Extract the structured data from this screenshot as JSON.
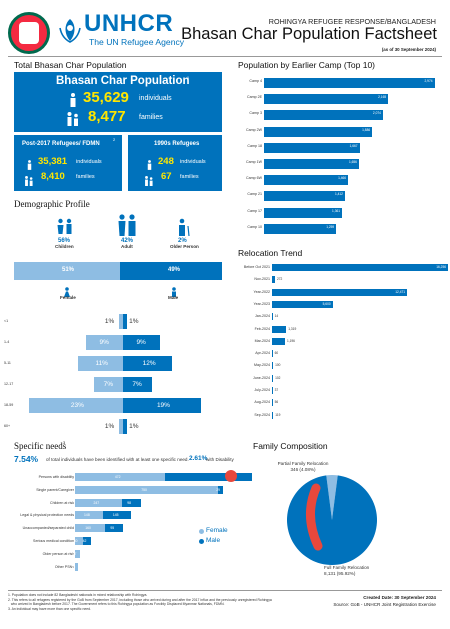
{
  "header": {
    "org_name": "UNHCR",
    "org_tagline": "The UN Refugee Agency",
    "kicker": "ROHINGYA REFUGEE RESPONSE/BANGLADESH",
    "title": "Bhasan Char Population Factsheet",
    "date_note": "(as of 30 September 2024)",
    "colors": {
      "accent": "#0072bc",
      "light": "#8ebde3",
      "highlight": "#ffe600",
      "seal_green": "#006a4e",
      "seal_red": "#f42a41"
    }
  },
  "total": {
    "section_title": "Total Bhasan Char Population",
    "box_title": "Bhasan Char Population",
    "box_footnote": "1",
    "individuals_value": "35,629",
    "individuals_label": "individuals",
    "families_value": "8,477",
    "families_label": "families"
  },
  "post2017": {
    "title": "Post-2017 Refugees/ FDMN",
    "footnote": "2",
    "individuals_value": "35,381",
    "individuals_label": "individuals",
    "families_value": "8,410",
    "families_label": "families"
  },
  "refugees1990": {
    "title": "1990s Refugees",
    "individuals_value": "248",
    "individuals_label": "individuals",
    "families_value": "67",
    "families_label": "families"
  },
  "demographic": {
    "section_title": "Demographic Profile",
    "age_groups": [
      {
        "pct": "56%",
        "label": "Children"
      },
      {
        "pct": "42%",
        "label": "Adult"
      },
      {
        "pct": "2%",
        "label": "Older Person"
      }
    ],
    "female_pct": "51%",
    "male_pct": "49%",
    "female_label": "Female",
    "male_label": "Male",
    "female_share": 0.51
  },
  "pyramid": {
    "rows": [
      {
        "age": "<1",
        "female": "1%",
        "male": "1%",
        "f": 1,
        "m": 1
      },
      {
        "age": "1-4",
        "female": "9%",
        "male": "9%",
        "f": 9,
        "m": 9
      },
      {
        "age": "5-11",
        "female": "11%",
        "male": "12%",
        "f": 11,
        "m": 12
      },
      {
        "age": "12-17",
        "female": "7%",
        "male": "7%",
        "f": 7,
        "m": 7
      },
      {
        "age": "18-59",
        "female": "23%",
        "male": "19%",
        "f": 23,
        "m": 19
      },
      {
        "age": "60+",
        "female": "1%",
        "male": "1%",
        "f": 1,
        "m": 1
      }
    ]
  },
  "chart_data": [
    {
      "type": "bar",
      "title": "Population by Earlier Camp (Top 10)",
      "categories": [
        "Camp 4",
        "Camp 2E",
        "Camp 3",
        "Camp 2W",
        "Camp 18",
        "Camp 1W",
        "Camp 6W",
        "Camp 21",
        "Camp 17",
        "Camp 10"
      ],
      "values": [
        2974,
        2165,
        2074,
        1886,
        1667,
        1656,
        1466,
        1412,
        1361,
        1259
      ],
      "labels": [
        "2,974",
        "2,165",
        "2,074",
        "1,886",
        "1,667",
        "1,656",
        "1,466",
        "1,412",
        "1,361",
        "1,259"
      ],
      "orientation": "horizontal",
      "xlim": [
        0,
        3000
      ]
    },
    {
      "type": "bar",
      "title": "Relocation Trend",
      "categories": [
        "Before Oct 2021",
        "Nov-2021",
        "Year-2022",
        "Year-2023",
        "Jan-2024",
        "Feb-2024",
        "Mar-2024",
        "Apr-2024",
        "May-2024",
        "June-2024",
        "July-2024",
        "Aug-2024",
        "Sep-2024"
      ],
      "values": [
        16256,
        272,
        12471,
        5600,
        14,
        1319,
        1196,
        60,
        100,
        102,
        37,
        56,
        119
      ],
      "labels": [
        "16,256",
        "272",
        "12,471",
        "5,600",
        "14",
        "1,319",
        "1,196",
        "60",
        "100",
        "102",
        "37",
        "56",
        "119"
      ],
      "orientation": "horizontal",
      "xlim": [
        0,
        16256
      ]
    },
    {
      "type": "bar",
      "title": "Specific needs",
      "footnote": "3",
      "stat_pct": "7.54%",
      "stat_text": "of total individuals have been identified with at least one specific need.",
      "disability_pct": "2.61%",
      "disability_text": "with Disability",
      "categories": [
        "Persons with disability",
        "Single parent/Caregiver",
        "Children at risk",
        "Legal & physical protection needs",
        "Unaccompanied/separated child",
        "Serious medical condition",
        "Older person at risk",
        "Other PSNs"
      ],
      "series": [
        {
          "name": "Female",
          "values": [
            472,
            750,
            247,
            148,
            160,
            40,
            27,
            16
          ],
          "labels": [
            "472",
            "750",
            "247",
            "148",
            "160",
            "40",
            "27",
            "16"
          ]
        },
        {
          "name": "Male",
          "values": [
            460,
            29,
            98,
            145,
            95,
            42,
            0,
            0
          ],
          "labels": [
            "",
            "29",
            "98",
            "145",
            "95",
            "42",
            "",
            ""
          ]
        }
      ],
      "legend": "right"
    },
    {
      "type": "pie",
      "title": "Family Composition",
      "slices": [
        {
          "name": "Partial Family Relocation",
          "value": 346,
          "label": "Partial Family Relocation\n346 (4.08%)",
          "pct": 4.08
        },
        {
          "name": "Full Family Relocation",
          "value": 8131,
          "label": "Full Family Relocation\n8,131 (95.92%)",
          "pct": 95.92
        }
      ]
    }
  ],
  "footer": {
    "notes": [
      "1. Population does not include 82 Bangladeshi nationals in mixed relationship with Rohingya.",
      "2. This refers to all refugees registered by the GoB from September 2017, including those who arrived during and after the 2017 influx and the previously unregistered Rohingya",
      "   who arrived in Bangladesh before 2017. The Government refers to this Rohingya population as Forcibly Displaced Myanmar Nationals, FDMN.",
      "3. An individual may have more than one specific need."
    ],
    "created_date": "Created Date: 30 September 2024",
    "source": "Source: GoB - UNHCR Joint Registration Exercise"
  }
}
